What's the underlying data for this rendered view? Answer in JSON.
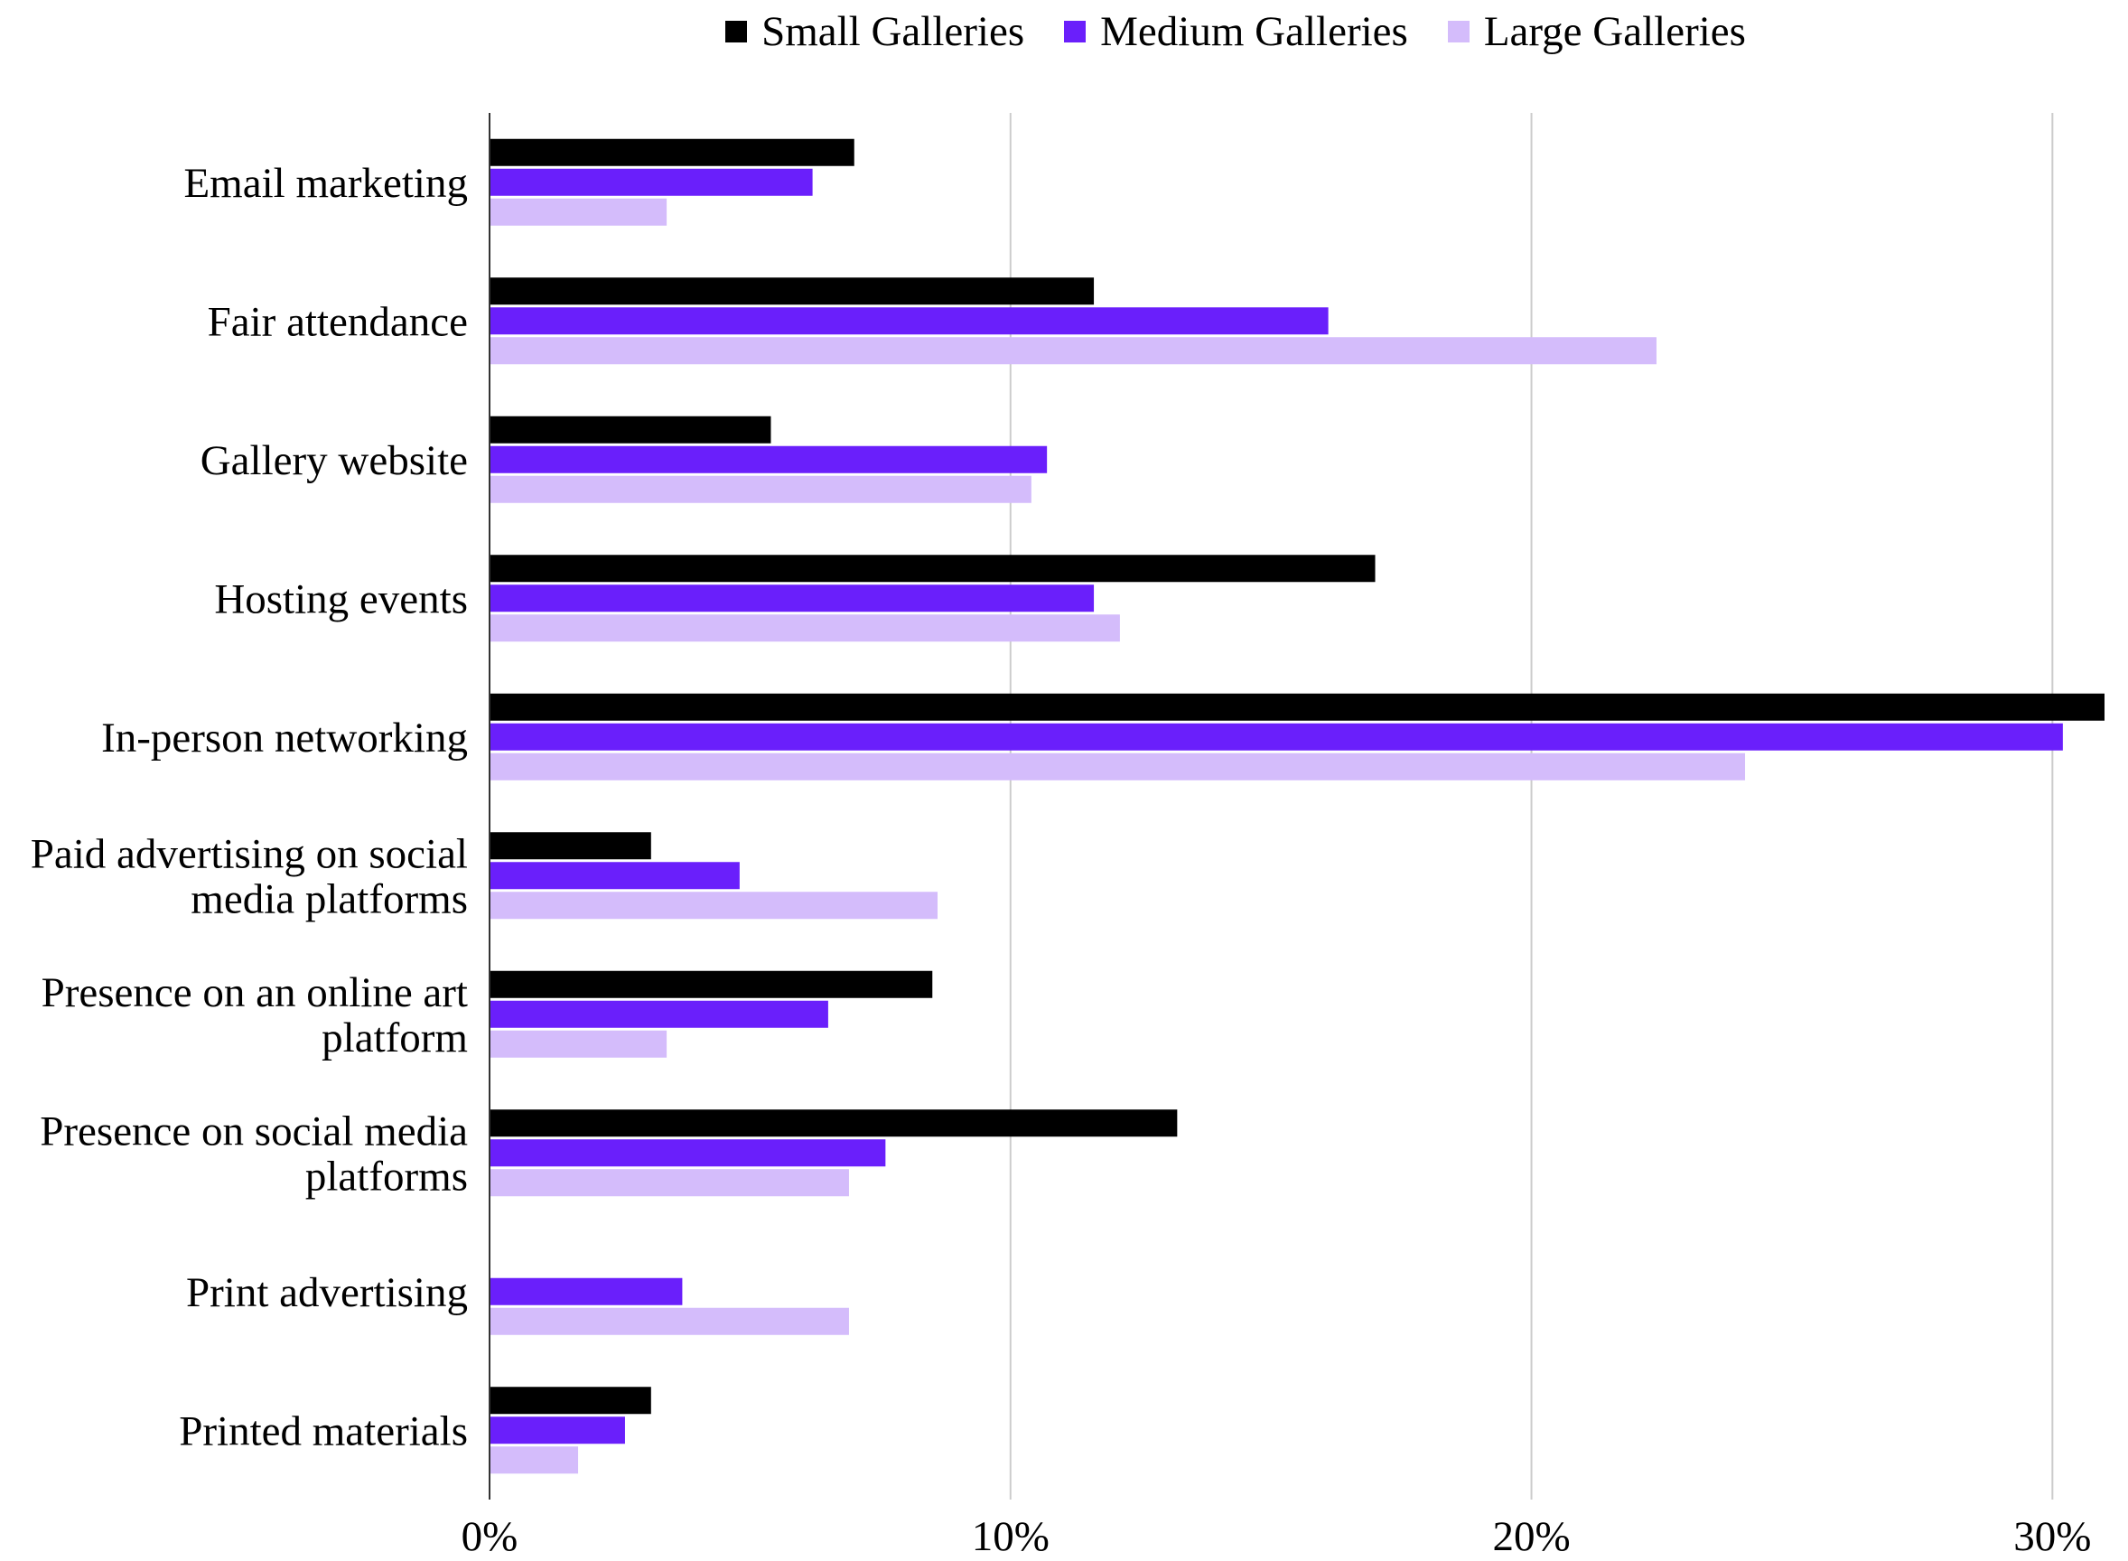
{
  "chart_data": {
    "type": "bar",
    "orientation": "horizontal",
    "title": "",
    "xlabel": "",
    "ylabel": "",
    "categories": [
      [
        "Email marketing"
      ],
      [
        "Fair attendance"
      ],
      [
        "Gallery website"
      ],
      [
        "Hosting events"
      ],
      [
        "In-person networking"
      ],
      [
        "Paid advertising on social",
        "media platforms"
      ],
      [
        "Presence on an online art",
        "platform"
      ],
      [
        "Presence on social media",
        "platforms"
      ],
      [
        "Print advertising"
      ],
      [
        "Printed materials"
      ]
    ],
    "series": [
      {
        "name": "Small Galleries",
        "color": "#000000",
        "values": [
          7.0,
          11.6,
          5.4,
          17.0,
          31.0,
          3.1,
          8.5,
          13.2,
          0,
          3.1
        ]
      },
      {
        "name": "Medium Galleries",
        "color": "#6a1ffb",
        "values": [
          6.2,
          16.1,
          10.7,
          11.6,
          30.2,
          4.8,
          6.5,
          7.6,
          3.7,
          2.6
        ]
      },
      {
        "name": "Large Galleries",
        "color": "#d4bcfb",
        "values": [
          3.4,
          22.4,
          10.4,
          12.1,
          24.1,
          8.6,
          3.4,
          6.9,
          6.9,
          1.7
        ]
      }
    ],
    "xlim": [
      0,
      31
    ],
    "xticks": [
      "0%",
      "10%",
      "20%",
      "30%"
    ],
    "xtick_values": [
      0,
      10,
      20,
      30
    ],
    "grid": true,
    "legend_position": "top-center"
  }
}
